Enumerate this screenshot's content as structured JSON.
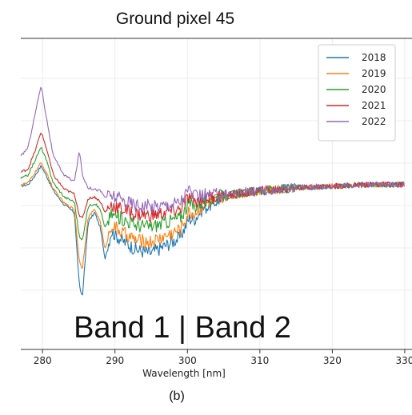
{
  "chart_data": {
    "type": "line",
    "title": "Ground pixel 45",
    "xlabel": "Wavelength [nm]",
    "ylabel": "",
    "caption": "(b)",
    "annotation": "Band 1 | Band 2",
    "xlim": [
      277,
      331
    ],
    "ylim": [
      -1.0,
      1.0
    ],
    "xticks": [
      280,
      290,
      300,
      310,
      320,
      330
    ],
    "grid": true,
    "legend_position": "top-right",
    "series": [
      {
        "name": "2018",
        "color": "#1f77b4",
        "offset": -0.31,
        "x": [
          277,
          278,
          279,
          279.8,
          280.5,
          281.5,
          283,
          284.4,
          285.1,
          285.5,
          286.3,
          287.2,
          288,
          288.6,
          289.5,
          291,
          293,
          295,
          297,
          299,
          300.2,
          301,
          302,
          303.5,
          305,
          307,
          310,
          315,
          320,
          325,
          330
        ],
        "y": [
          0.05,
          0.06,
          0.12,
          0.18,
          0.12,
          0.02,
          -0.07,
          -0.12,
          -0.6,
          -0.66,
          -0.18,
          -0.12,
          -0.22,
          -0.42,
          -0.24,
          -0.3,
          -0.36,
          -0.38,
          -0.33,
          -0.28,
          -0.16,
          -0.16,
          -0.1,
          -0.06,
          -0.02,
          0.0,
          0.02,
          0.04,
          0.05,
          0.06,
          0.06
        ]
      },
      {
        "name": "2019",
        "color": "#ff7f0e",
        "offset": -0.22,
        "x": [
          277,
          278,
          279,
          279.8,
          280.5,
          281.5,
          283,
          284.4,
          285.1,
          285.5,
          286.3,
          287.2,
          288,
          288.6,
          289.5,
          291,
          293,
          295,
          297,
          299,
          300.2,
          301,
          302,
          303.5,
          305,
          307,
          310,
          315,
          320,
          325,
          330
        ],
        "y": [
          0.06,
          0.07,
          0.14,
          0.2,
          0.14,
          0.03,
          -0.06,
          -0.1,
          -0.44,
          -0.48,
          -0.15,
          -0.1,
          -0.18,
          -0.36,
          -0.2,
          -0.25,
          -0.3,
          -0.31,
          -0.27,
          -0.23,
          -0.12,
          -0.13,
          -0.08,
          -0.05,
          -0.02,
          0.0,
          0.02,
          0.04,
          0.05,
          0.06,
          0.06
        ]
      },
      {
        "name": "2020",
        "color": "#2ca02c",
        "offset": -0.1,
        "x": [
          277,
          278,
          279,
          279.8,
          280.5,
          281.5,
          283,
          284.4,
          285.1,
          285.5,
          286.3,
          287.2,
          288,
          288.6,
          289.5,
          291,
          293,
          295,
          297,
          299,
          300.2,
          301,
          302,
          303.5,
          305,
          307,
          310,
          315,
          320,
          325,
          330
        ],
        "y": [
          0.1,
          0.12,
          0.22,
          0.3,
          0.22,
          0.07,
          -0.02,
          -0.05,
          -0.28,
          -0.3,
          -0.08,
          -0.06,
          -0.1,
          -0.22,
          -0.13,
          -0.16,
          -0.2,
          -0.21,
          -0.18,
          -0.15,
          -0.06,
          -0.08,
          -0.05,
          -0.03,
          -0.01,
          0.0,
          0.02,
          0.04,
          0.05,
          0.06,
          0.06
        ]
      },
      {
        "name": "2021",
        "color": "#d62728",
        "offset": -0.02,
        "x": [
          277,
          278,
          279,
          279.8,
          280.5,
          281.5,
          283,
          284.4,
          285.1,
          285.5,
          286.3,
          287.2,
          288,
          288.6,
          289.5,
          291,
          293,
          295,
          297,
          299,
          300.2,
          301,
          302,
          303.5,
          305,
          307,
          310,
          315,
          320,
          325,
          330
        ],
        "y": [
          0.14,
          0.16,
          0.28,
          0.4,
          0.3,
          0.12,
          0.03,
          0.0,
          -0.14,
          -0.16,
          -0.03,
          -0.02,
          -0.05,
          -0.12,
          -0.07,
          -0.1,
          -0.13,
          -0.14,
          -0.12,
          -0.1,
          -0.02,
          -0.05,
          -0.03,
          -0.02,
          -0.01,
          0.0,
          0.02,
          0.04,
          0.05,
          0.06,
          0.06
        ]
      },
      {
        "name": "2022",
        "color": "#9467bd",
        "offset": 0.12,
        "x": [
          277,
          278,
          279,
          279.8,
          280.5,
          281.5,
          283,
          284.4,
          285.1,
          285.5,
          286.3,
          287.2,
          288,
          288.6,
          289.5,
          291,
          293,
          295,
          297,
          299,
          300.2,
          301,
          302,
          303.5,
          305,
          307,
          310,
          315,
          320,
          325,
          330
        ],
        "y": [
          0.24,
          0.3,
          0.52,
          0.7,
          0.5,
          0.24,
          0.12,
          0.08,
          0.28,
          0.12,
          0.04,
          0.03,
          0.02,
          -0.02,
          -0.01,
          -0.04,
          -0.07,
          -0.08,
          -0.07,
          -0.05,
          0.03,
          -0.02,
          -0.01,
          -0.01,
          0.0,
          0.01,
          0.02,
          0.04,
          0.05,
          0.06,
          0.06
        ]
      }
    ]
  }
}
